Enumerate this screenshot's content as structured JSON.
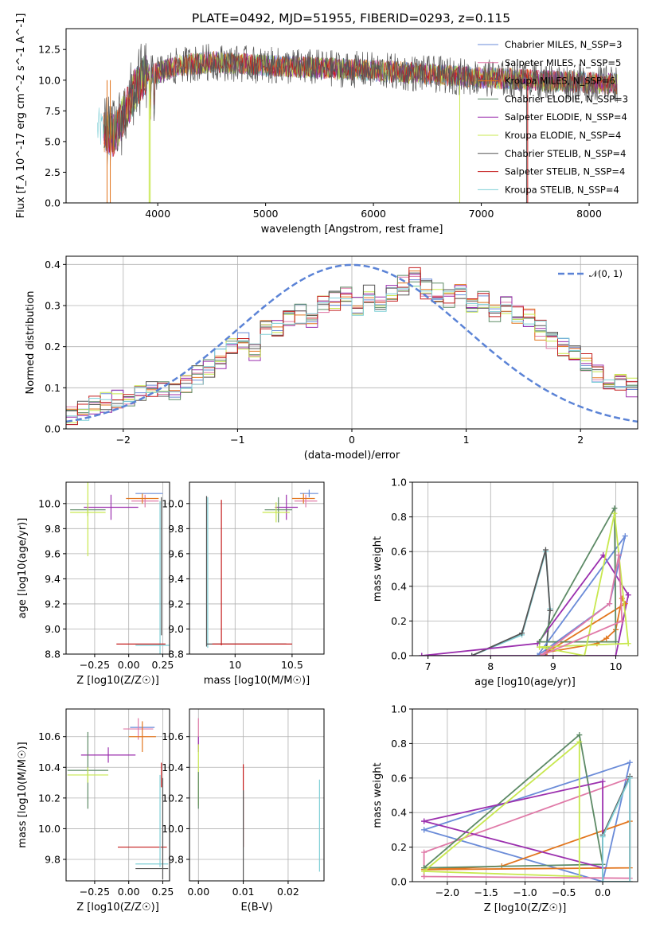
{
  "colors": {
    "chabrier_miles": "#6a8bd8",
    "salpeter_miles": "#e07aa8",
    "kroupa_miles": "#e2761e",
    "chabrier_elodie": "#5d8a66",
    "salpeter_elodie": "#9b2fae",
    "kroupa_elodie": "#c8e84f",
    "chabrier_stelib": "#555555",
    "salpeter_stelib": "#c41c1c",
    "kroupa_stelib": "#7fcfd6",
    "gaussian": "#5b83d6"
  },
  "chart_data": [
    {
      "type": "line",
      "title": "PLATE=0492, MJD=51955, FIBERID=0293, z=0.115",
      "xlabel": "wavelength [Angstrom, rest frame]",
      "ylabel": "Flux [f_λ 10^-17 erg cm^-2 s^-1 A^-1]",
      "xlim": [
        3150,
        8450
      ],
      "ylim": [
        0,
        14.2
      ],
      "xticks": [
        4000,
        5000,
        6000,
        7000,
        8000
      ],
      "yticks": [
        0.0,
        2.5,
        5.0,
        7.5,
        10.0,
        12.5
      ],
      "legend_position": "right",
      "spectrum_shape": {
        "x": [
          3450,
          3600,
          3700,
          3800,
          3900,
          4000,
          4200,
          4500,
          5000,
          5500,
          6000,
          6500,
          7000,
          7500,
          8000,
          8250
        ],
        "y": [
          6.0,
          5.5,
          7.5,
          9.5,
          10.5,
          10.6,
          11.2,
          11.5,
          11.2,
          11.0,
          10.8,
          10.5,
          10.2,
          10.0,
          9.8,
          9.7
        ]
      },
      "series": [
        {
          "name": "Chabrier MILES, N_SSP=3",
          "color_key": "chabrier_miles"
        },
        {
          "name": "Salpeter MILES, N_SSP=5",
          "color_key": "salpeter_miles"
        },
        {
          "name": "Kroupa MILES, N_SSP=6",
          "color_key": "kroupa_miles"
        },
        {
          "name": "Chabrier ELODIE, N_SSP=3",
          "color_key": "chabrier_elodie"
        },
        {
          "name": "Salpeter ELODIE, N_SSP=4",
          "color_key": "salpeter_elodie"
        },
        {
          "name": "Kroupa ELODIE, N_SSP=4",
          "color_key": "kroupa_elodie"
        },
        {
          "name": "Chabrier STELIB, N_SSP=4",
          "color_key": "chabrier_stelib"
        },
        {
          "name": "Salpeter STELIB, N_SSP=4",
          "color_key": "salpeter_stelib"
        },
        {
          "name": "Kroupa STELIB, N_SSP=4",
          "color_key": "kroupa_stelib"
        }
      ]
    },
    {
      "type": "line",
      "xlabel": "(data-model)/error",
      "ylabel": "Normed distribution",
      "xlim": [
        -2.5,
        2.5
      ],
      "ylim": [
        0,
        0.42
      ],
      "xticks": [
        -2,
        -1,
        0,
        1,
        2
      ],
      "yticks": [
        0.0,
        0.1,
        0.2,
        0.3,
        0.4
      ],
      "grid": true,
      "legend_position": "top-right",
      "gaussian_label": "𝒩(0, 1)",
      "bin_edges_start": -2.5,
      "bin_width": 0.1,
      "histogram_base": [
        0.03,
        0.045,
        0.055,
        0.065,
        0.07,
        0.075,
        0.085,
        0.1,
        0.1,
        0.095,
        0.11,
        0.13,
        0.15,
        0.17,
        0.2,
        0.21,
        0.19,
        0.24,
        0.25,
        0.27,
        0.28,
        0.26,
        0.3,
        0.31,
        0.32,
        0.3,
        0.33,
        0.3,
        0.33,
        0.35,
        0.37,
        0.34,
        0.33,
        0.32,
        0.33,
        0.3,
        0.31,
        0.28,
        0.3,
        0.28,
        0.27,
        0.24,
        0.22,
        0.2,
        0.18,
        0.16,
        0.13,
        0.12,
        0.11,
        0.1
      ]
    },
    {
      "type": "scatter",
      "xlabel": "Z [log10(Z/Z☉)]",
      "ylabel": "age  [log10(age/yr)]",
      "xlim": [
        -0.46,
        0.3
      ],
      "ylim": [
        8.8,
        10.17
      ],
      "xticks": [
        -0.25,
        0.0,
        0.25
      ],
      "xtick_labels": [
        "−0.25",
        "0.00",
        "0.25"
      ],
      "yticks": [
        8.8,
        9.0,
        9.2,
        9.4,
        9.6,
        9.8,
        10.0
      ],
      "grid": true,
      "points": [
        {
          "key": "chabrier_miles",
          "x": 0.15,
          "y": 10.08,
          "xerr": 0.1,
          "yerr": 0.0
        },
        {
          "key": "salpeter_miles",
          "x": 0.12,
          "y": 10.02,
          "xerr": 0.1,
          "yerr": 0.05
        },
        {
          "key": "kroupa_miles",
          "x": 0.1,
          "y": 10.04,
          "xerr": 0.12,
          "yerr": 0.04
        },
        {
          "key": "salpeter_elodie",
          "x": -0.13,
          "y": 9.97,
          "xerr": 0.2,
          "yerr": 0.1
        },
        {
          "key": "chabrier_elodie",
          "x": -0.3,
          "y": 9.95,
          "xerr": 0.13,
          "yerr": 0.05
        },
        {
          "key": "kroupa_elodie",
          "x": -0.3,
          "y": 9.93,
          "xerr": 0.13,
          "yerr": 0.35
        },
        {
          "key": "chabrier_stelib",
          "x": 0.24,
          "y": 9.5,
          "xerr": 0.0,
          "yerr": 0.55
        },
        {
          "key": "kroupa_stelib",
          "x": 0.23,
          "y": 8.87,
          "xerr": 0.18,
          "yerr": 1.15
        },
        {
          "key": "salpeter_stelib",
          "x": 0.09,
          "y": 8.88,
          "xerr": 0.18,
          "yerr": 0.0
        }
      ]
    },
    {
      "type": "scatter",
      "xlabel": "mass [log10(M/M☉)]",
      "ylabel": "",
      "xlim": [
        9.6,
        10.78
      ],
      "ylim": [
        8.8,
        10.17
      ],
      "xticks": [
        10.0,
        10.5
      ],
      "yticks": [
        8.8,
        9.0,
        9.2,
        9.4,
        9.6,
        9.8,
        10.0
      ],
      "grid": true,
      "points": [
        {
          "key": "chabrier_miles",
          "x": 10.65,
          "y": 10.08,
          "xerr": 0.08,
          "yerr": 0.03
        },
        {
          "key": "salpeter_miles",
          "x": 10.62,
          "y": 10.02,
          "xerr": 0.1,
          "yerr": 0.05
        },
        {
          "key": "kroupa_miles",
          "x": 10.6,
          "y": 10.04,
          "xerr": 0.1,
          "yerr": 0.04
        },
        {
          "key": "salpeter_elodie",
          "x": 10.45,
          "y": 9.97,
          "xerr": 0.1,
          "yerr": 0.1
        },
        {
          "key": "chabrier_elodie",
          "x": 10.38,
          "y": 9.95,
          "xerr": 0.12,
          "yerr": 0.1
        },
        {
          "key": "kroupa_elodie",
          "x": 10.36,
          "y": 9.93,
          "xerr": 0.12,
          "yerr": 0.08
        },
        {
          "key": "chabrier_stelib",
          "x": 9.75,
          "y": 9.46,
          "xerr": 0.0,
          "yerr": 0.6
        },
        {
          "key": "kroupa_stelib",
          "x": 9.76,
          "y": 9.45,
          "xerr": 0.0,
          "yerr": 0.6
        },
        {
          "key": "salpeter_stelib",
          "x": 9.88,
          "y": 9.45,
          "xerr": 0.0,
          "yerr": 0.58
        },
        {
          "key": "chabrier_stelib",
          "x": 10.1,
          "y": 8.88,
          "xerr": 0.35,
          "yerr": 0.0
        },
        {
          "key": "salpeter_stelib",
          "x": 10.15,
          "y": 8.88,
          "xerr": 0.35,
          "yerr": 0.0
        }
      ]
    },
    {
      "type": "line",
      "xlabel": "age  [log10(age/yr)]",
      "ylabel": "mass weight",
      "xlim": [
        6.75,
        10.35
      ],
      "ylim": [
        0,
        1.0
      ],
      "xticks": [
        7,
        8,
        9,
        10
      ],
      "yticks": [
        0.0,
        0.2,
        0.4,
        0.6,
        0.8,
        1.0
      ],
      "grid": true,
      "series": [
        {
          "key": "kroupa_stelib",
          "x": [
            7.7,
            8.5,
            8.88,
            8.95,
            8.88
          ],
          "y": [
            0.0,
            0.12,
            0.6,
            0.27,
            0.0
          ]
        },
        {
          "key": "chabrier_stelib",
          "x": [
            7.7,
            8.5,
            8.88,
            8.95,
            8.88
          ],
          "y": [
            0.0,
            0.13,
            0.61,
            0.26,
            0.0
          ]
        },
        {
          "key": "salpeter_elodie",
          "x": [
            6.9,
            8.75,
            9.8,
            10.2,
            10.0,
            6.9
          ],
          "y": [
            0.0,
            0.07,
            0.58,
            0.35,
            0.0,
            0.0
          ]
        },
        {
          "key": "chabrier_miles",
          "x": [
            8.75,
            9.9,
            10.15,
            8.75
          ],
          "y": [
            0.0,
            0.3,
            0.69,
            0.0
          ]
        },
        {
          "key": "kroupa_miles",
          "x": [
            8.9,
            9.7,
            9.85,
            10.0,
            10.1,
            10.15,
            8.9
          ],
          "y": [
            0.02,
            0.07,
            0.1,
            0.15,
            0.33,
            0.3,
            0.02
          ]
        },
        {
          "key": "chabrier_elodie",
          "x": [
            8.78,
            9.98,
            10.0,
            8.78
          ],
          "y": [
            0.08,
            0.85,
            0.08,
            0.08
          ]
        },
        {
          "key": "kroupa_elodie",
          "x": [
            8.78,
            9.5,
            9.98,
            10.2,
            8.78
          ],
          "y": [
            0.05,
            0.0,
            0.82,
            0.07,
            0.05
          ]
        },
        {
          "key": "salpeter_miles",
          "x": [
            8.8,
            9.9,
            10.05,
            10.1,
            8.8
          ],
          "y": [
            0.0,
            0.3,
            0.58,
            0.2,
            0.0
          ]
        }
      ]
    },
    {
      "type": "scatter",
      "xlabel": "Z [log10(Z/Z☉)]",
      "ylabel": "mass [log10(M/M☉)]",
      "xlim": [
        -0.46,
        0.3
      ],
      "ylim": [
        9.66,
        10.78
      ],
      "xticks": [
        -0.25,
        0.0,
        0.25
      ],
      "xtick_labels": [
        "−0.25",
        "0.00",
        "0.25"
      ],
      "yticks": [
        9.8,
        10.0,
        10.2,
        10.4,
        10.6
      ],
      "grid": true,
      "points": [
        {
          "key": "chabrier_miles",
          "x": 0.1,
          "y": 10.66,
          "xerr": 0.09,
          "yerr": 0.0
        },
        {
          "key": "salpeter_miles",
          "x": 0.07,
          "y": 10.65,
          "xerr": 0.11,
          "yerr": 0.07
        },
        {
          "key": "kroupa_miles",
          "x": 0.1,
          "y": 10.6,
          "xerr": 0.1,
          "yerr": 0.1
        },
        {
          "key": "salpeter_elodie",
          "x": -0.15,
          "y": 10.48,
          "xerr": 0.2,
          "yerr": 0.05
        },
        {
          "key": "chabrier_elodie",
          "x": -0.3,
          "y": 10.38,
          "xerr": 0.15,
          "yerr": 0.25
        },
        {
          "key": "kroupa_elodie",
          "x": -0.3,
          "y": 10.35,
          "xerr": 0.15,
          "yerr": 0.05
        },
        {
          "key": "salpeter_stelib",
          "x": 0.1,
          "y": 9.88,
          "xerr": 0.18,
          "yerr": 0.0
        },
        {
          "key": "salpeter_stelib",
          "x": 0.24,
          "y": 10.35,
          "xerr": 0.0,
          "yerr": 0.08
        },
        {
          "key": "kroupa_stelib",
          "x": 0.23,
          "y": 10.05,
          "xerr": 0.0,
          "yerr": 0.3
        },
        {
          "key": "kroupa_stelib",
          "x": 0.17,
          "y": 9.77,
          "xerr": 0.12,
          "yerr": 0.0
        },
        {
          "key": "chabrier_stelib",
          "x": 0.17,
          "y": 9.74,
          "xerr": 0.12,
          "yerr": 0.0
        },
        {
          "key": "chabrier_stelib",
          "x": 0.25,
          "y": 10.0,
          "xerr": 0.0,
          "yerr": 0.33
        }
      ]
    },
    {
      "type": "scatter",
      "xlabel": "E(B-V)",
      "ylabel": "",
      "xlim": [
        -0.002,
        0.028
      ],
      "ylim": [
        9.66,
        10.78
      ],
      "xticks": [
        0.0,
        0.01,
        0.02
      ],
      "xtick_labels": [
        "0.00",
        "0.01",
        "0.02"
      ],
      "yticks": [
        9.8,
        10.0,
        10.2,
        10.4,
        10.6
      ],
      "grid": true,
      "points": [
        {
          "key": "salpeter_miles",
          "x": 0.0,
          "y": 10.62,
          "xerr": 0.0,
          "yerr": 0.1
        },
        {
          "key": "salpeter_elodie",
          "x": 0.0,
          "y": 10.55,
          "xerr": 0.0,
          "yerr": 0.05
        },
        {
          "key": "kroupa_elodie",
          "x": 0.0,
          "y": 10.35,
          "xerr": 0.0,
          "yerr": 0.2
        },
        {
          "key": "chabrier_elodie",
          "x": 0.0,
          "y": 10.25,
          "xerr": 0.0,
          "yerr": 0.12
        },
        {
          "key": "salpeter_stelib",
          "x": 0.01,
          "y": 10.15,
          "xerr": 0.0,
          "yerr": 0.27
        },
        {
          "key": "chabrier_stelib",
          "x": 0.01,
          "y": 9.95,
          "xerr": 0.0,
          "yerr": 0.3
        },
        {
          "key": "kroupa_stelib",
          "x": 0.027,
          "y": 10.02,
          "xerr": 0.0,
          "yerr": 0.3
        }
      ]
    },
    {
      "type": "line",
      "xlabel": "Z [log10(Z/Z☉)]",
      "ylabel": "mass weight",
      "xlim": [
        -2.45,
        0.45
      ],
      "ylim": [
        0,
        1.0
      ],
      "xticks": [
        -2.0,
        -1.5,
        -1.0,
        -0.5,
        0.0
      ],
      "xtick_labels": [
        "−2.0",
        "−1.5",
        "−1.0",
        "−0.5",
        "0.0"
      ],
      "yticks": [
        0.0,
        0.2,
        0.4,
        0.6,
        0.8,
        1.0
      ],
      "grid": true,
      "series": [
        {
          "key": "chabrier_miles",
          "x": [
            -2.3,
            0.35,
            0.0,
            -2.3
          ],
          "y": [
            0.3,
            0.69,
            0.0,
            0.3
          ]
        },
        {
          "key": "salpeter_miles",
          "x": [
            -2.3,
            -2.3,
            0.35,
            0.35,
            -2.3
          ],
          "y": [
            0.03,
            0.17,
            0.6,
            0.02,
            0.03
          ]
        },
        {
          "key": "kroupa_miles",
          "x": [
            -2.3,
            -1.3,
            0.35,
            0.35,
            -2.3
          ],
          "y": [
            0.07,
            0.09,
            0.35,
            0.08,
            0.07
          ]
        },
        {
          "key": "chabrier_elodie",
          "x": [
            -2.3,
            -0.3,
            0.0,
            -2.3
          ],
          "y": [
            0.08,
            0.85,
            0.1,
            0.08
          ]
        },
        {
          "key": "salpeter_elodie",
          "x": [
            -2.3,
            0.0,
            0.0,
            -2.3
          ],
          "y": [
            0.35,
            0.08,
            0.58,
            0.35
          ]
        },
        {
          "key": "kroupa_elodie",
          "x": [
            -2.3,
            -0.3,
            -0.3,
            -2.3
          ],
          "y": [
            0.06,
            0.81,
            0.03,
            0.06
          ]
        },
        {
          "key": "chabrier_stelib",
          "x": [
            0.0,
            0.0,
            0.35,
            0.35,
            0.0
          ],
          "y": [
            0.0,
            0.27,
            0.61,
            0.0,
            0.0
          ]
        },
        {
          "key": "kroupa_stelib",
          "x": [
            0.0,
            0.0,
            0.35,
            0.35,
            0.0
          ],
          "y": [
            0.0,
            0.26,
            0.6,
            0.0,
            0.0
          ]
        }
      ]
    }
  ]
}
